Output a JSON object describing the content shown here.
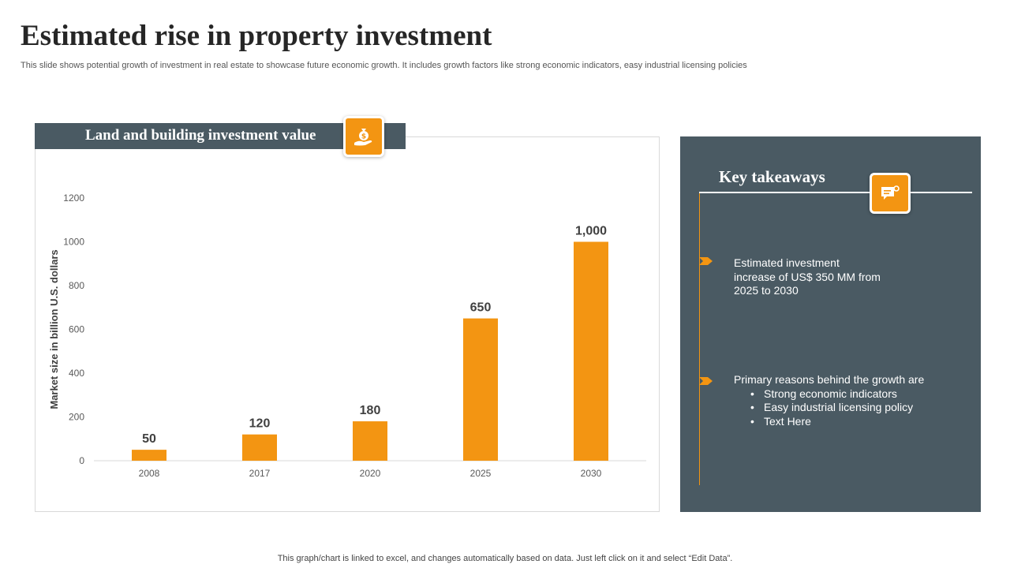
{
  "page": {
    "title": "Estimated rise in property investment",
    "subtitle": "This slide shows potential growth of investment in real estate to showcase future economic growth. It includes growth factors like strong economic indicators, easy industrial licensing policies",
    "footer": "This graph/chart is linked to excel,  and changes automatically based on data. Just left click on it and select “Edit Data”."
  },
  "chart_panel": {
    "header": "Land and building investment value",
    "icon": "money-bag-hand-icon"
  },
  "takeaways": {
    "title": "Key takeaways",
    "icon": "chat-key-icon",
    "point1": "Estimated investment increase of US$ 350 MM from 2025 to 2030",
    "point2_intro": "Primary reasons behind the growth are",
    "point2_bullets": [
      "Strong economic indicators",
      "Easy industrial licensing policy",
      "Text Here"
    ]
  },
  "colors": {
    "accent": "#f39512",
    "panel": "#4a5a63"
  },
  "chart_data": {
    "type": "bar",
    "categories": [
      "2008",
      "2017",
      "2020",
      "2025",
      "2030"
    ],
    "values": [
      50,
      120,
      180,
      650,
      1000
    ],
    "value_labels": [
      "50",
      "120",
      "180",
      "650",
      "1,000"
    ],
    "title": "",
    "xlabel": "",
    "ylabel": "Market size in billion U.S. dollars",
    "ylim": [
      0,
      1200
    ],
    "yticks": [
      0,
      200,
      400,
      600,
      800,
      1000,
      1200
    ],
    "grid": false,
    "legend": "none",
    "bar_color": "#f39512"
  }
}
